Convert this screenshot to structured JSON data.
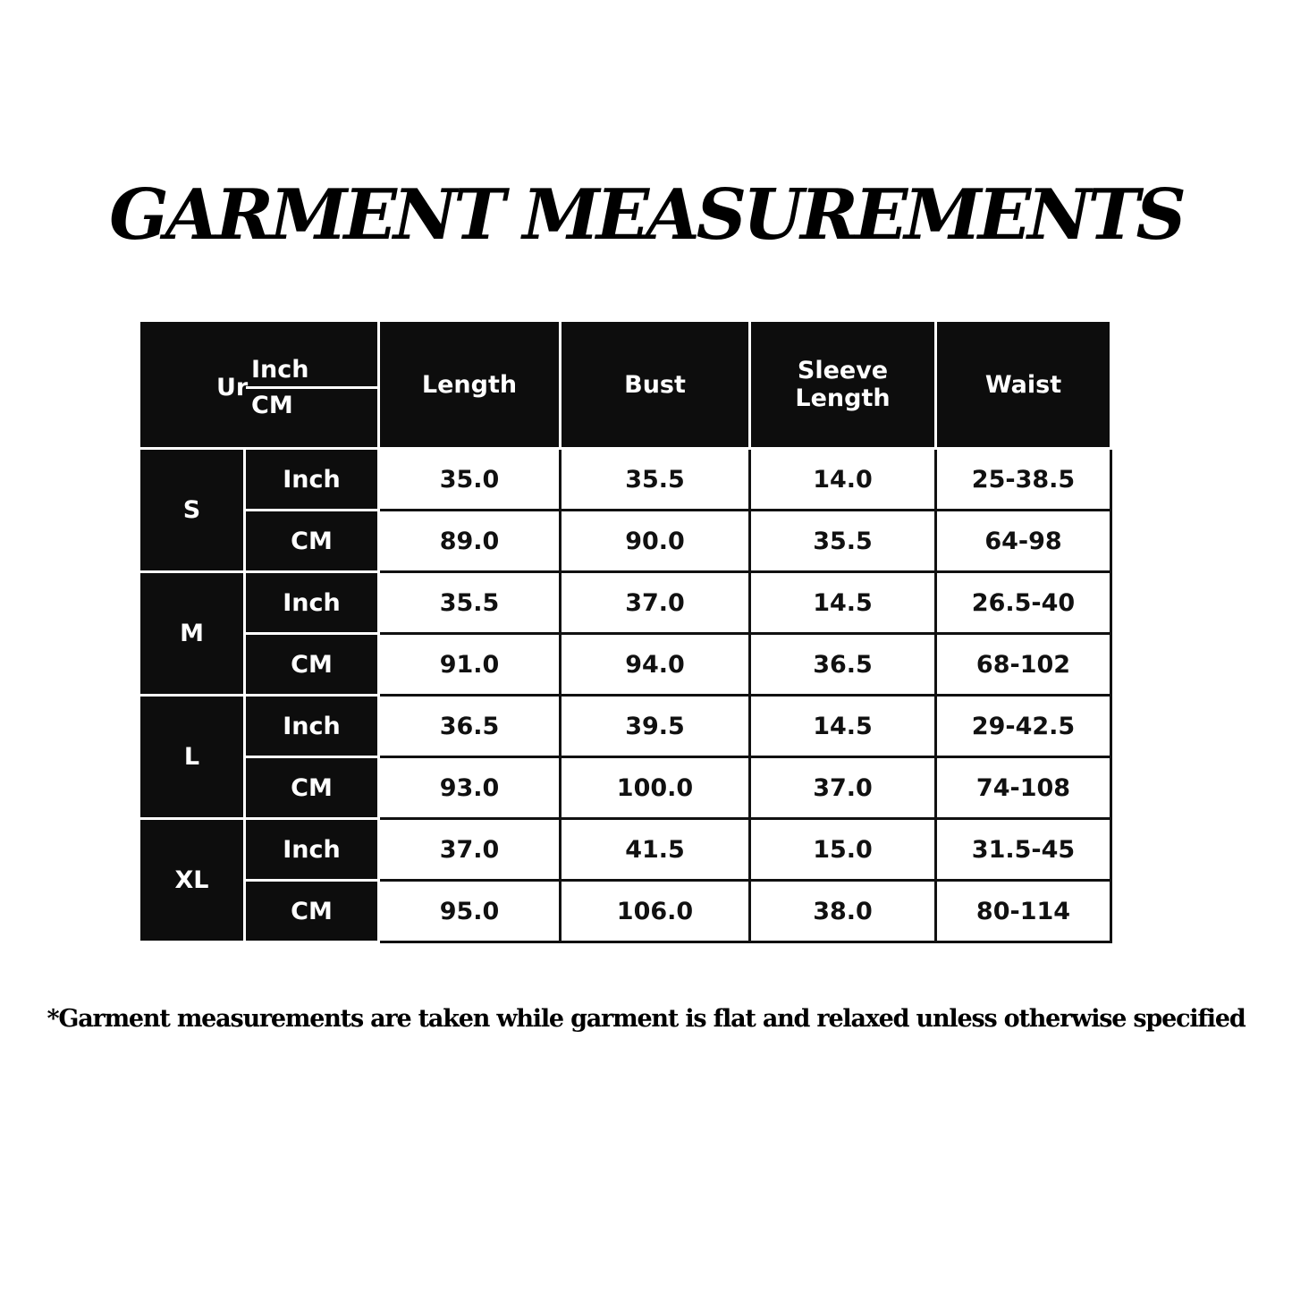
{
  "title": "GARMENT MEASUREMENTS",
  "header": {
    "unit_prefix": "Ur",
    "unit_inch": "Inch",
    "unit_cm": "CM",
    "columns": [
      "Length",
      "Bust",
      "Sleeve Length",
      "Waist"
    ]
  },
  "sizes": [
    {
      "size": "S",
      "rows": [
        {
          "unit": "Inch",
          "values": [
            "35.0",
            "35.5",
            "14.0",
            "25-38.5"
          ]
        },
        {
          "unit": "CM",
          "values": [
            "89.0",
            "90.0",
            "35.5",
            "64-98"
          ]
        }
      ]
    },
    {
      "size": "M",
      "rows": [
        {
          "unit": "Inch",
          "values": [
            "35.5",
            "37.0",
            "14.5",
            "26.5-40"
          ]
        },
        {
          "unit": "CM",
          "values": [
            "91.0",
            "94.0",
            "36.5",
            "68-102"
          ]
        }
      ]
    },
    {
      "size": "L",
      "rows": [
        {
          "unit": "Inch",
          "values": [
            "36.5",
            "39.5",
            "14.5",
            "29-42.5"
          ]
        },
        {
          "unit": "CM",
          "values": [
            "93.0",
            "100.0",
            "37.0",
            "74-108"
          ]
        }
      ]
    },
    {
      "size": "XL",
      "rows": [
        {
          "unit": "Inch",
          "values": [
            "37.0",
            "41.5",
            "15.0",
            "31.5-45"
          ]
        },
        {
          "unit": "CM",
          "values": [
            "95.0",
            "106.0",
            "38.0",
            "80-114"
          ]
        }
      ]
    }
  ],
  "footnote": "*Garment measurements are taken while garment is flat and relaxed unless otherwise specified"
}
